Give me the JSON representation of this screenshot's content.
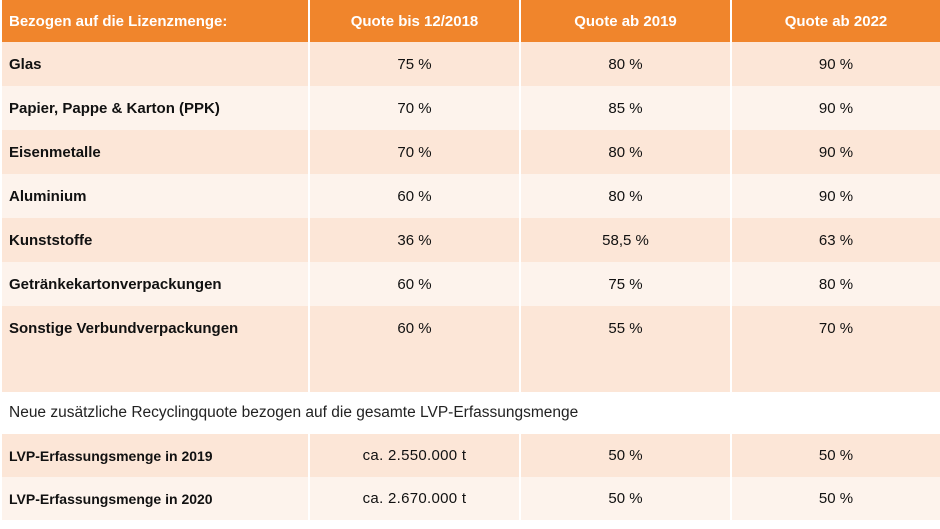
{
  "header": {
    "col0": "Bezogen auf die Lizenzmenge:",
    "col1": "Quote bis 12/2018",
    "col2": "Quote ab 2019",
    "col3": "Quote ab 2022"
  },
  "rows": [
    {
      "label": "Glas",
      "q2018": "75 %",
      "q2019": "80 %",
      "q2022": "90 %"
    },
    {
      "label": "Papier, Pappe & Karton (PPK)",
      "q2018": "70 %",
      "q2019": "85 %",
      "q2022": "90 %"
    },
    {
      "label": "Eisenmetalle",
      "q2018": "70 %",
      "q2019": "80 %",
      "q2022": "90 %"
    },
    {
      "label": "Aluminium",
      "q2018": "60 %",
      "q2019": "80 %",
      "q2022": "90 %"
    },
    {
      "label": "Kunststoffe",
      "q2018": "36 %",
      "q2019": "58,5 %",
      "q2022": "63 %"
    },
    {
      "label": "Getränkekartonverpackungen",
      "q2018": "60 %",
      "q2019": "75 %",
      "q2022": "80 %"
    },
    {
      "label": "Sonstige Verbundverpackungen",
      "q2018": "60 %",
      "q2019": "55 %",
      "q2022": "70 %"
    }
  ],
  "note": "Neue zusätzliche Recyclingquote bezogen auf die gesamte LVP-Erfassungsmenge",
  "lvp_rows": [
    {
      "label": "LVP-Erfassungsmenge  in 2019",
      "amount": "ca. 2.550.000  t",
      "q2019": "50 %",
      "q2022": "50 %"
    },
    {
      "label": "LVP-Erfassungsmenge  in 2020",
      "amount": "ca. 2.670.000  t",
      "q2019": "50 %",
      "q2022": "50 %"
    }
  ]
}
